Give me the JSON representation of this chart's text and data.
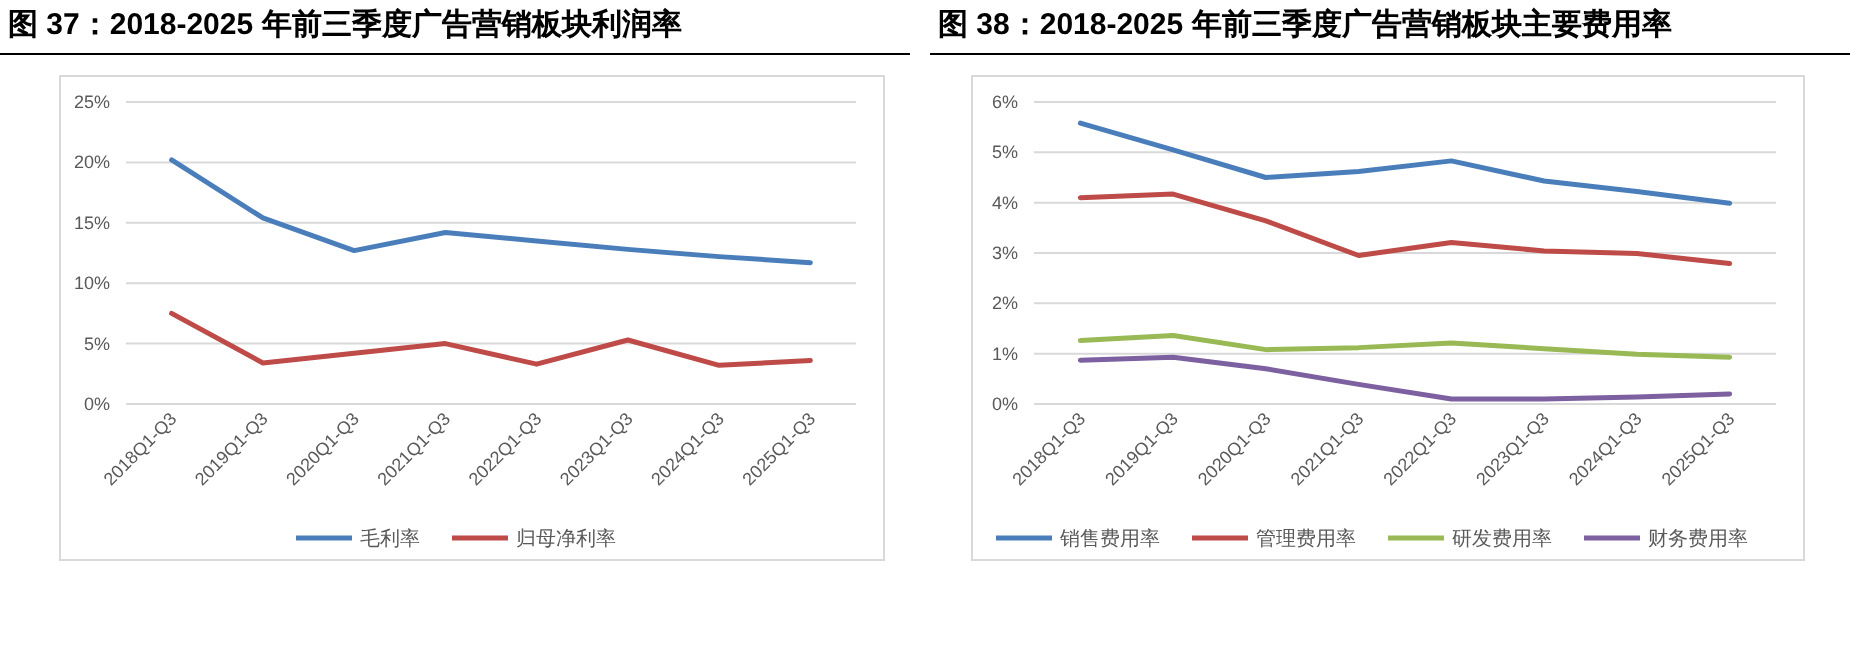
{
  "chart_data": [
    {
      "type": "line",
      "title": "图 37：2018-2025 年前三季度广告营销板块利润率",
      "categories": [
        "2018Q1-Q3",
        "2019Q1-Q3",
        "2020Q1-Q3",
        "2021Q1-Q3",
        "2022Q1-Q3",
        "2023Q1-Q3",
        "2024Q1-Q3",
        "2025Q1-Q3"
      ],
      "series": [
        {
          "name": "毛利率",
          "color": "#4a7ebb",
          "values": [
            20.2,
            15.4,
            12.7,
            14.2,
            13.5,
            12.8,
            12.2,
            11.7
          ]
        },
        {
          "name": "归母净利率",
          "color": "#be4b48",
          "values": [
            7.5,
            3.4,
            4.2,
            5.0,
            3.3,
            5.3,
            3.2,
            3.6
          ]
        }
      ],
      "ylim": [
        0,
        25
      ],
      "yticks": [
        {
          "value": 0,
          "label": "0%"
        },
        {
          "value": 5,
          "label": "5%"
        },
        {
          "value": 10,
          "label": "10%"
        },
        {
          "value": 15,
          "label": "15%"
        },
        {
          "value": 20,
          "label": "20%"
        },
        {
          "value": 25,
          "label": "25%"
        }
      ],
      "grid": "y",
      "legend": "bottom"
    },
    {
      "type": "line",
      "title": "图 38：2018-2025 年前三季度广告营销板块主要费用率",
      "categories": [
        "2018Q1-Q3",
        "2019Q1-Q3",
        "2020Q1-Q3",
        "2021Q1-Q3",
        "2022Q1-Q3",
        "2023Q1-Q3",
        "2024Q1-Q3",
        "2025Q1-Q3"
      ],
      "series": [
        {
          "name": "销售费用率",
          "color": "#4a7ebb",
          "values": [
            5.58,
            5.05,
            4.5,
            4.62,
            4.83,
            4.43,
            4.22,
            3.99
          ]
        },
        {
          "name": "管理费用率",
          "color": "#be4b48",
          "values": [
            4.1,
            4.17,
            3.64,
            2.95,
            3.21,
            3.04,
            2.99,
            2.79
          ]
        },
        {
          "name": "研发费用率",
          "color": "#98b954",
          "values": [
            1.26,
            1.36,
            1.08,
            1.12,
            1.21,
            1.1,
            0.99,
            0.93
          ]
        },
        {
          "name": "财务费用率",
          "color": "#7d60a0",
          "values": [
            0.87,
            0.93,
            0.7,
            0.39,
            0.1,
            0.1,
            0.14,
            0.2
          ]
        }
      ],
      "ylim": [
        0,
        6
      ],
      "yticks": [
        {
          "value": 0,
          "label": "0%"
        },
        {
          "value": 1,
          "label": "1%"
        },
        {
          "value": 2,
          "label": "2%"
        },
        {
          "value": 3,
          "label": "3%"
        },
        {
          "value": 4,
          "label": "4%"
        },
        {
          "value": 5,
          "label": "5%"
        },
        {
          "value": 6,
          "label": "6%"
        }
      ],
      "grid": "y",
      "legend": "bottom"
    }
  ]
}
